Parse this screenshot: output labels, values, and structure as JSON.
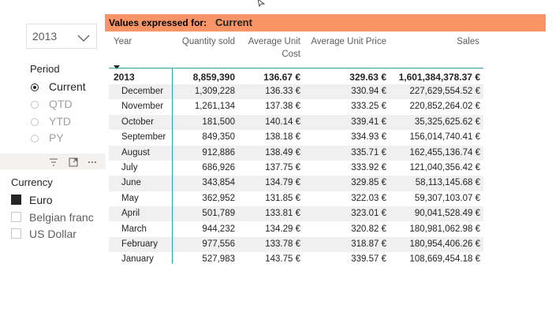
{
  "year_slicer": {
    "selected": "2013"
  },
  "period_slicer": {
    "title": "Period",
    "options": [
      "Current",
      "QTD",
      "YTD",
      "PY"
    ],
    "selected": "Current"
  },
  "currency_slicer": {
    "title": "Currency",
    "options": [
      "Euro",
      "Belgian franc",
      "US Dollar"
    ],
    "selected": "Euro"
  },
  "table": {
    "banner_label": "Values expressed for:",
    "banner_value": "Current",
    "banner_color": "#f99466",
    "columns": {
      "year": "Year",
      "qty": "Quantity sold",
      "cost_line1": "Average Unit",
      "cost_line2": "Cost",
      "price": "Average Unit Price",
      "sales": "Sales"
    },
    "total": {
      "label": "2013",
      "qty": "8,859,390",
      "cost": "136.67 €",
      "price": "329.63 €",
      "sales": "1,601,384,378.37 €"
    },
    "rows": [
      {
        "label": "December",
        "qty": "1,309,228",
        "cost": "136.33 €",
        "price": "330.94 €",
        "sales": "227,629,554.52 €"
      },
      {
        "label": "November",
        "qty": "1,261,134",
        "cost": "137.38 €",
        "price": "333.25 €",
        "sales": "220,852,264.02 €"
      },
      {
        "label": "October",
        "qty": "181,500",
        "cost": "140.14 €",
        "price": "339.41 €",
        "sales": "35,325,625.62 €"
      },
      {
        "label": "September",
        "qty": "849,350",
        "cost": "138.18 €",
        "price": "334.93 €",
        "sales": "156,014,740.41 €"
      },
      {
        "label": "August",
        "qty": "912,886",
        "cost": "138.49 €",
        "price": "335.71 €",
        "sales": "162,455,136.74 €"
      },
      {
        "label": "July",
        "qty": "686,926",
        "cost": "137.75 €",
        "price": "333.92 €",
        "sales": "121,040,356.42 €"
      },
      {
        "label": "June",
        "qty": "343,854",
        "cost": "134.79 €",
        "price": "329.85 €",
        "sales": "58,113,145.68 €"
      },
      {
        "label": "May",
        "qty": "362,952",
        "cost": "131.85 €",
        "price": "322.03 €",
        "sales": "59,307,103.07 €"
      },
      {
        "label": "April",
        "qty": "501,789",
        "cost": "133.81 €",
        "price": "323.01 €",
        "sales": "90,041,528.49 €"
      },
      {
        "label": "March",
        "qty": "944,232",
        "cost": "134.29 €",
        "price": "320.82 €",
        "sales": "180,981,062.98 €"
      },
      {
        "label": "February",
        "qty": "977,556",
        "cost": "133.78 €",
        "price": "318.87 €",
        "sales": "180,954,406.26 €"
      },
      {
        "label": "January",
        "qty": "527,983",
        "cost": "143.75 €",
        "price": "339.57 €",
        "sales": "108,669,454.18 €"
      }
    ]
  }
}
